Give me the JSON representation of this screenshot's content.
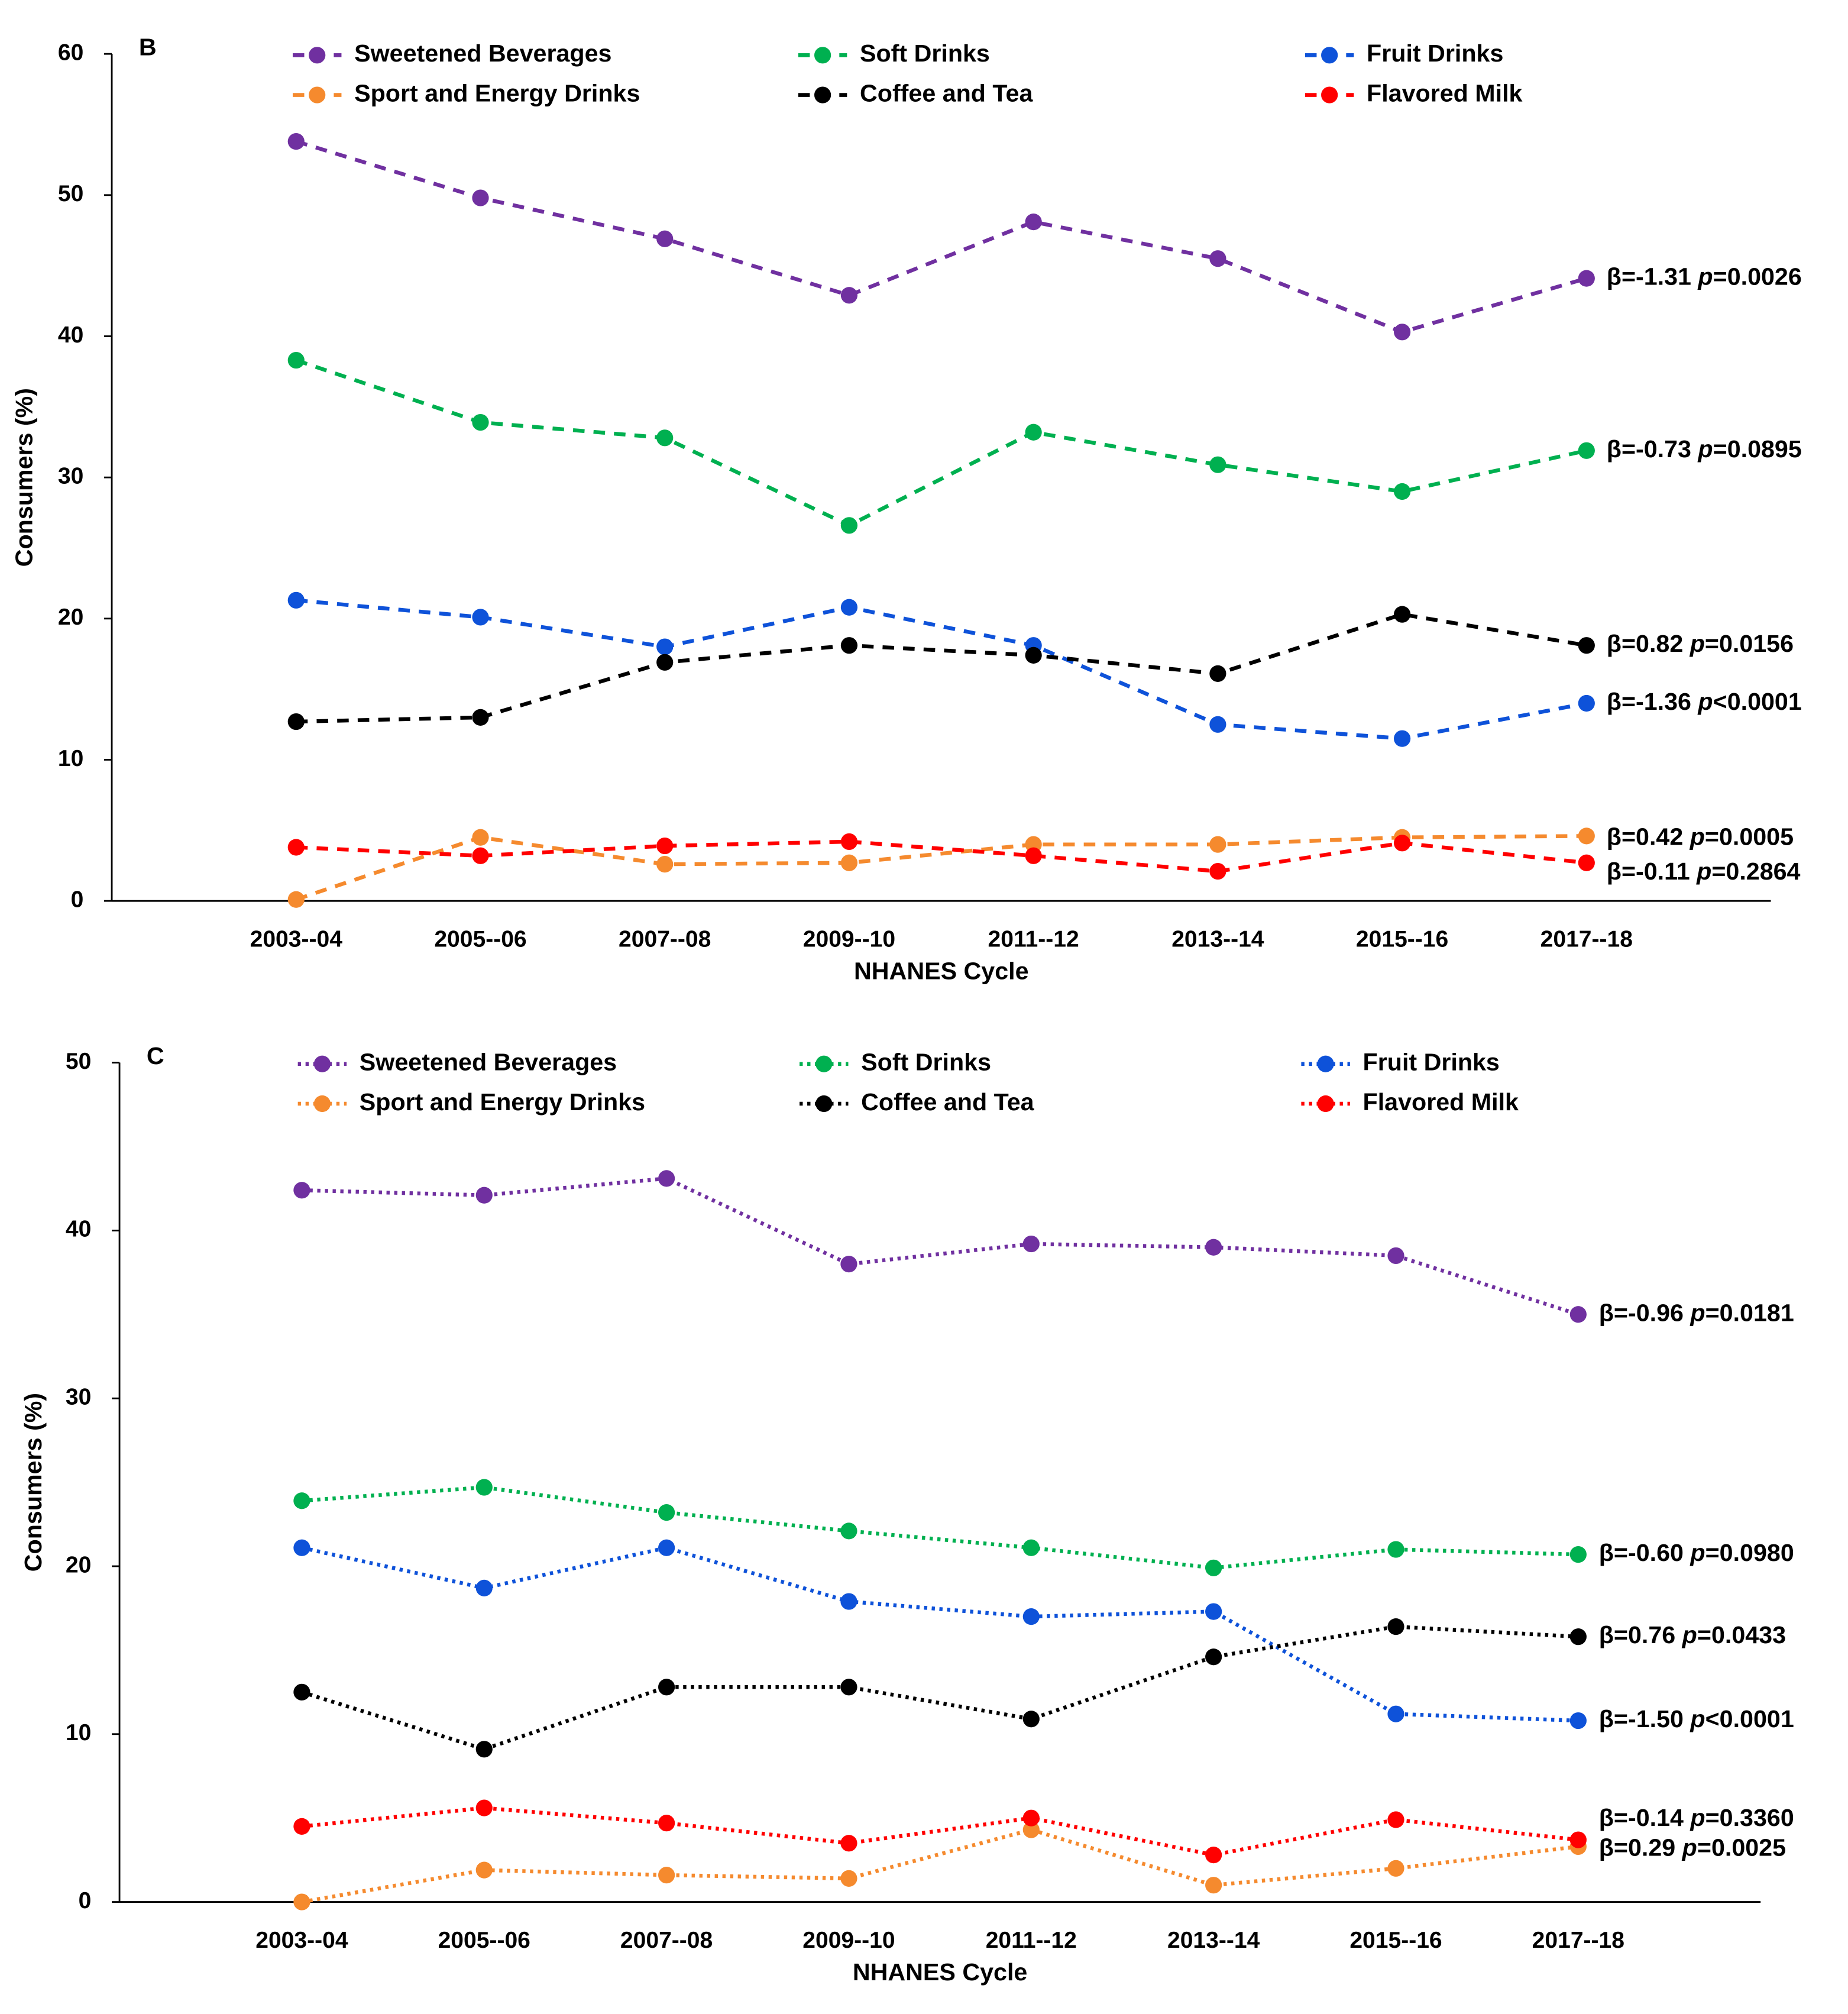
{
  "chart_data": [
    {
      "type": "line",
      "panel_label": "B",
      "line_style": "dashed",
      "y_axis_label": "Consumers (%)",
      "x_axis_label": "NHANES Cycle",
      "categories": [
        "2003--04",
        "2005--06",
        "2007--08",
        "2009--10",
        "2011--12",
        "2013--14",
        "2015--16",
        "2017--18"
      ],
      "ylim": [
        0,
        60
      ],
      "yticks": [
        0,
        10,
        20,
        30,
        40,
        50,
        60
      ],
      "series": [
        {
          "name": "Sweetened Beverages",
          "color": "#7030a0",
          "values": [
            53.8,
            49.8,
            46.9,
            42.9,
            48.1,
            45.5,
            40.3,
            44.1
          ],
          "annotation": "β=-1.31 p=0.0026"
        },
        {
          "name": "Soft Drinks",
          "color": "#00b050",
          "values": [
            38.3,
            33.9,
            32.8,
            26.6,
            33.2,
            30.9,
            29.0,
            31.9
          ],
          "annotation": "β=-0.73 p=0.0895"
        },
        {
          "name": "Fruit Drinks",
          "color": "#0e52d9",
          "values": [
            21.3,
            20.1,
            18.0,
            20.8,
            18.1,
            12.5,
            11.5,
            14.0
          ],
          "annotation": "β=-1.36 p<0.0001"
        },
        {
          "name": "Sport and Energy Drinks",
          "color": "#f58a2e",
          "values": [
            0.1,
            4.5,
            2.6,
            2.7,
            4.0,
            4.0,
            4.5,
            4.6
          ],
          "annotation": "β=0.42 p=0.0005"
        },
        {
          "name": "Coffee and Tea",
          "color": "#000000",
          "values": [
            12.7,
            13.0,
            16.9,
            18.1,
            17.4,
            16.1,
            20.3,
            18.1
          ],
          "annotation": "β=0.82 p=0.0156"
        },
        {
          "name": "Flavored Milk",
          "color": "#ff0000",
          "values": [
            3.8,
            3.2,
            3.9,
            4.2,
            3.2,
            2.1,
            4.1,
            2.7
          ],
          "annotation": "β=-0.11 p=0.2864"
        }
      ]
    },
    {
      "type": "line",
      "panel_label": "C",
      "line_style": "dotted",
      "y_axis_label": "Consumers (%)",
      "x_axis_label": "NHANES Cycle",
      "categories": [
        "2003--04",
        "2005--06",
        "2007--08",
        "2009--10",
        "2011--12",
        "2013--14",
        "2015--16",
        "2017--18"
      ],
      "ylim": [
        0,
        50
      ],
      "yticks": [
        0,
        10,
        20,
        30,
        40,
        50
      ],
      "series": [
        {
          "name": "Sweetened Beverages",
          "color": "#7030a0",
          "values": [
            42.4,
            42.1,
            43.1,
            38.0,
            39.2,
            39.0,
            38.5,
            35.0
          ],
          "annotation": "β=-0.96 p=0.0181"
        },
        {
          "name": "Soft Drinks",
          "color": "#00b050",
          "values": [
            23.9,
            24.7,
            23.2,
            22.1,
            21.1,
            19.9,
            21.0,
            20.7
          ],
          "annotation": "β=-0.60 p=0.0980"
        },
        {
          "name": "Fruit Drinks",
          "color": "#0e52d9",
          "values": [
            21.1,
            18.7,
            21.1,
            17.9,
            17.0,
            17.3,
            11.2,
            10.8
          ],
          "annotation": "β=-1.50 p<0.0001"
        },
        {
          "name": "Sport and Energy Drinks",
          "color": "#f58a2e",
          "values": [
            0.0,
            1.9,
            1.6,
            1.4,
            4.3,
            1.0,
            2.0,
            3.3
          ],
          "annotation": "β=0.29 p=0.0025"
        },
        {
          "name": "Coffee and Tea",
          "color": "#000000",
          "values": [
            12.5,
            9.1,
            12.8,
            12.8,
            10.9,
            14.6,
            16.4,
            15.8
          ],
          "annotation": "β=0.76 p=0.0433"
        },
        {
          "name": "Flavored Milk",
          "color": "#ff0000",
          "values": [
            4.5,
            5.6,
            4.7,
            3.5,
            5.0,
            2.8,
            4.9,
            3.7
          ],
          "annotation": "β=-0.14 p=0.3360"
        }
      ]
    }
  ]
}
